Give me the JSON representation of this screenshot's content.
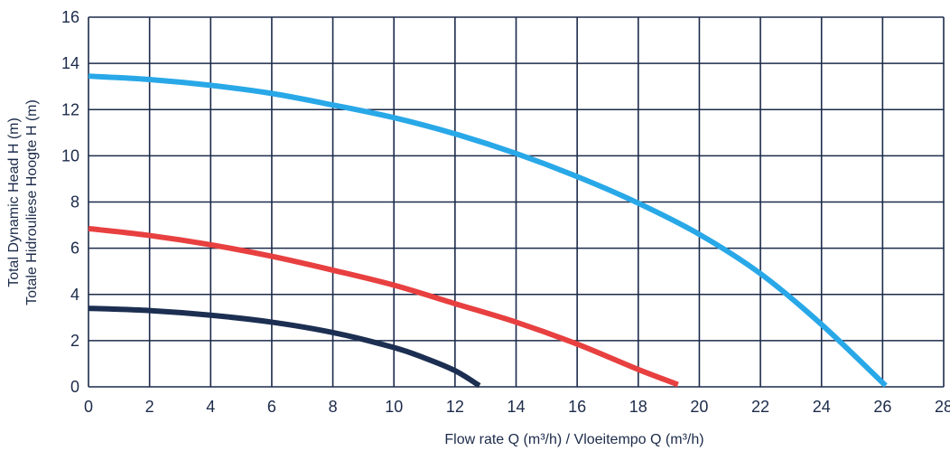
{
  "chart_data": {
    "type": "line",
    "xlabel": "Flow rate Q (m³/h) / Vloeitempo Q (m³/h)",
    "ylabel_lines": [
      "Total Dynamic Head H (m)",
      "Totale Hidrouliese Hoogte H (m)"
    ],
    "xlim": [
      0,
      28
    ],
    "ylim": [
      0,
      16
    ],
    "x_ticks": [
      0,
      2,
      4,
      6,
      8,
      10,
      12,
      14,
      16,
      18,
      20,
      22,
      24,
      26,
      28
    ],
    "y_ticks": [
      0,
      2,
      4,
      6,
      8,
      10,
      12,
      14,
      16
    ],
    "grid": true,
    "grid_color": "#1c2b4a",
    "series": [
      {
        "color": "#29a8e8",
        "x": [
          0,
          2,
          4,
          6,
          8,
          10,
          12,
          14,
          16,
          18,
          20,
          22,
          24,
          26.1
        ],
        "y": [
          13.45,
          13.3,
          13.05,
          12.7,
          12.2,
          11.65,
          10.95,
          10.1,
          9.1,
          7.95,
          6.6,
          4.9,
          2.7,
          0.05
        ]
      },
      {
        "color": "#e84040",
        "x": [
          0,
          2,
          4,
          6,
          8,
          10,
          12,
          14,
          16,
          18,
          19.3
        ],
        "y": [
          6.85,
          6.55,
          6.15,
          5.65,
          5.05,
          4.4,
          3.6,
          2.8,
          1.85,
          0.75,
          0.1
        ]
      },
      {
        "color": "#1c2f52",
        "x": [
          0,
          2,
          4,
          6,
          8,
          10,
          11,
          12,
          12.8
        ],
        "y": [
          3.4,
          3.3,
          3.1,
          2.8,
          2.35,
          1.7,
          1.25,
          0.7,
          0.05
        ]
      }
    ]
  }
}
